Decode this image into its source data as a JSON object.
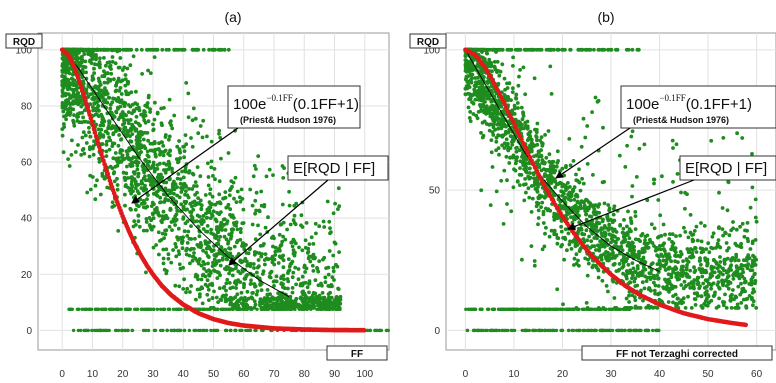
{
  "colors": {
    "scatter": "#1e8c1e",
    "fit": "#e01a1a",
    "mean": "#000000"
  },
  "chart_data": [
    {
      "type": "scatter",
      "title": "(a)",
      "ylabel": "RQD",
      "xlabel": "FF",
      "xlim": [
        -8,
        108
      ],
      "ylim": [
        -7,
        106
      ],
      "xticks": [
        "0",
        "10",
        "20",
        "30",
        "40",
        "50",
        "60",
        "70",
        "80",
        "90",
        "100"
      ],
      "yticks": [
        "0",
        "20",
        "40",
        "60",
        "80",
        "100"
      ],
      "grid": true,
      "formula": {
        "base": "100e",
        "exponent": "−0.1FF",
        "tail": "(0.1FF+1)"
      },
      "citation": "(Priest& Hudson 1976)",
      "expectation_label": "E[RQD | FF]",
      "series": [
        {
          "name": "data",
          "kind": "scatter",
          "color": "#1e8c1e"
        },
        {
          "name": "100e^{-0.1FF}(0.1FF+1)",
          "kind": "line",
          "color": "#e01a1a",
          "x": [
            0,
            2,
            4,
            6,
            8,
            10,
            12,
            14,
            16,
            18,
            20,
            22,
            24,
            26,
            28,
            30,
            33,
            36,
            40,
            45,
            50,
            55,
            60,
            70,
            80,
            90,
            100
          ],
          "y": [
            100,
            98.2,
            93.8,
            87.8,
            80.9,
            73.6,
            66.3,
            59.2,
            52.5,
            46.3,
            40.6,
            35.5,
            30.8,
            26.7,
            23.1,
            19.9,
            15.8,
            12.6,
            9.2,
            6.1,
            4.0,
            2.6,
            1.7,
            0.7,
            0.3,
            0.1,
            0.05
          ]
        },
        {
          "name": "E[RQD | FF]",
          "kind": "line",
          "color": "#000000",
          "x": [
            0,
            5,
            10,
            15,
            20,
            25,
            30,
            35,
            40,
            45,
            50,
            55,
            60,
            65,
            70,
            75
          ],
          "y": [
            100,
            94,
            86,
            78,
            70,
            62,
            55,
            48,
            42,
            36,
            31,
            26,
            22,
            18,
            15,
            12
          ]
        }
      ]
    },
    {
      "type": "scatter",
      "title": "(b)",
      "ylabel": "RQD",
      "xlabel": "FF not Terzaghi corrected",
      "xlim": [
        -4,
        64
      ],
      "ylim": [
        -7,
        106
      ],
      "xticks": [
        "0",
        "10",
        "20",
        "30",
        "40",
        "50",
        "60"
      ],
      "yticks": [
        "0",
        "50",
        "100"
      ],
      "grid": true,
      "formula": {
        "base": "100e",
        "exponent": "−0.1FF",
        "tail": "(0.1FF+1)"
      },
      "citation": "(Priest& Hudson 1976)",
      "expectation_label": "E[RQD | FF]",
      "series": [
        {
          "name": "data",
          "kind": "scatter",
          "color": "#1e8c1e"
        },
        {
          "name": "100e^{-0.1FF}(0.1FF+1)",
          "kind": "line",
          "color": "#e01a1a",
          "x": [
            0,
            2,
            4,
            6,
            8,
            10,
            12,
            14,
            16,
            18,
            20,
            22,
            24,
            26,
            28,
            30,
            33,
            36,
            40,
            45,
            50,
            55,
            58
          ],
          "y": [
            100,
            98.2,
            93.8,
            87.8,
            80.9,
            73.6,
            66.3,
            59.2,
            52.5,
            46.3,
            40.6,
            35.5,
            30.8,
            26.7,
            23.1,
            19.9,
            15.8,
            12.6,
            9.2,
            6.1,
            4.0,
            2.6,
            1.9
          ]
        },
        {
          "name": "E[RQD | FF]",
          "kind": "line",
          "color": "#000000",
          "x": [
            0,
            4,
            8,
            12,
            16,
            20,
            25,
            30,
            35,
            40
          ],
          "y": [
            100,
            88,
            76,
            64,
            54,
            46,
            37,
            30,
            25,
            21
          ]
        }
      ]
    }
  ]
}
